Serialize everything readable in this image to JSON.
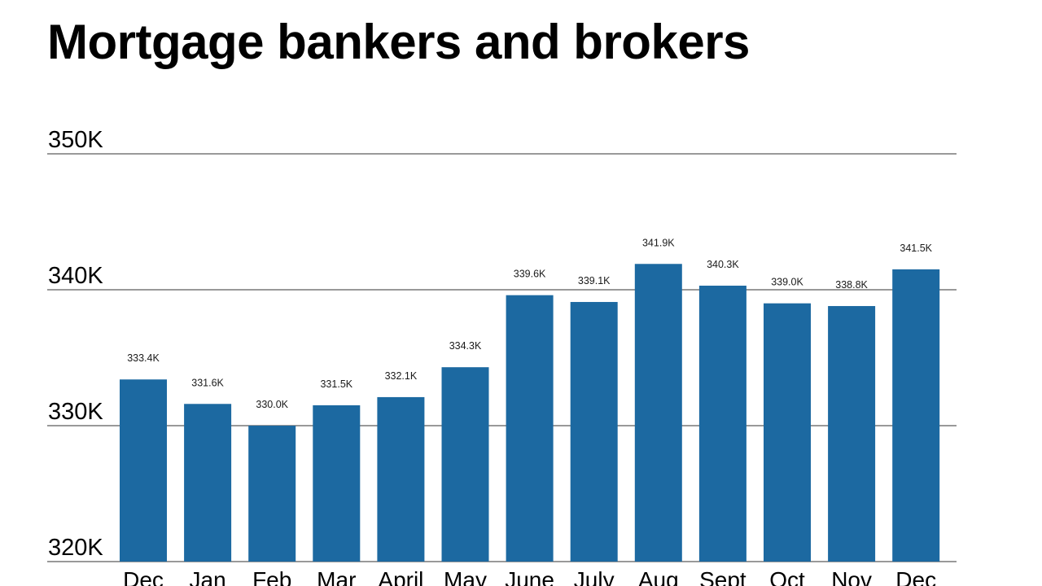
{
  "chart_data": {
    "type": "bar",
    "title": "Mortgage bankers and brokers",
    "categories": [
      "Dec",
      "Jan",
      "Feb",
      "Mar",
      "April",
      "May",
      "June",
      "July",
      "Aug",
      "Sept",
      "Oct",
      "Nov",
      "Dec"
    ],
    "values": [
      333.4,
      331.6,
      330.0,
      331.5,
      332.1,
      334.3,
      339.6,
      339.1,
      341.9,
      340.3,
      339.0,
      338.8,
      341.5
    ],
    "value_labels": [
      "333.4K",
      "331.6K",
      "330.0K",
      "331.5K",
      "332.1K",
      "334.3K",
      "339.6K",
      "339.1K",
      "341.9K",
      "340.3K",
      "339.0K",
      "338.8K",
      "341.5K"
    ],
    "ylim": [
      320,
      350
    ],
    "y_ticks": [
      320,
      330,
      340,
      350
    ],
    "y_tick_labels": [
      "320K",
      "330K",
      "340K",
      "350K"
    ],
    "xlabel": "",
    "ylabel": "",
    "grid": true,
    "legend": "none",
    "colors": {
      "bar": "#1c69a1",
      "gridline": "#333333",
      "text": "#000000"
    }
  }
}
